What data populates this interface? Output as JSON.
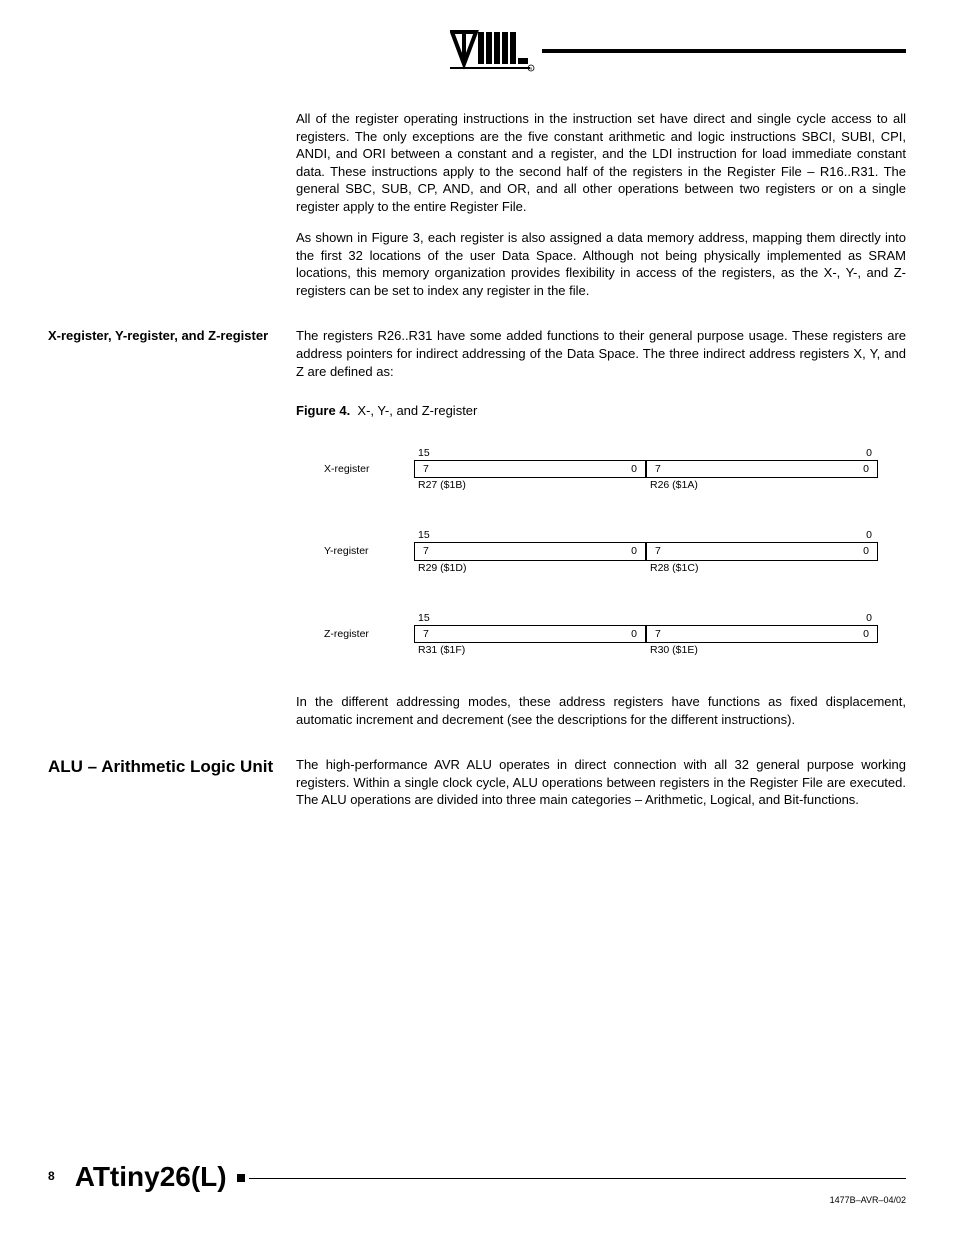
{
  "para1": "All of the register operating instructions in the instruction set have direct and single cycle access to all registers. The only exceptions are the five constant arithmetic and logic instructions SBCI, SUBI, CPI, ANDI, and ORI between a constant and a register, and the LDI instruction for load immediate constant data. These instructions apply to the second half of the registers in the Register File – R16..R31. The general SBC, SUB, CP, AND, and OR, and all other operations between two registers or on a single register apply to the entire Register File.",
  "para2": "As shown in Figure 3, each register is also assigned a data memory address, mapping them directly into the first 32 locations of the user Data Space. Although not being physically implemented as SRAM locations, this memory organization provides flexibility in access of the registers, as the X-, Y-, and Z-registers can be set to index any register in the file.",
  "side1": "X-register, Y-register, and Z-register",
  "para3": "The registers R26..R31 have some added functions to their general purpose usage. These registers are address pointers for indirect addressing of the Data Space. The three indirect address registers X, Y, and Z are defined as:",
  "fig_label": "Figure 4.",
  "fig_title": "X-, Y-, and Z-register",
  "registers": [
    {
      "name": "X-register",
      "hi": "R27 ($1B)",
      "lo": "R26 ($1A)"
    },
    {
      "name": "Y-register",
      "hi": "R29 ($1D)",
      "lo": "R28 ($1C)"
    },
    {
      "name": "Z-register",
      "hi": "R31 ($1F)",
      "lo": "R30 ($1E)"
    }
  ],
  "bits": {
    "top_left": "15",
    "top_right": "0",
    "cell_left": "7",
    "cell_right": "0"
  },
  "para4": "In the different addressing modes, these address registers have functions as fixed displacement, automatic increment and decrement (see the descriptions for the different instructions).",
  "side2": "ALU – Arithmetic Logic Unit",
  "para5": "The high-performance AVR ALU operates in direct connection with all 32 general purpose working registers. Within a single clock cycle, ALU operations between registers in the Register File are executed. The ALU operations are divided into three main categories – Arithmetic, Logical, and Bit-functions.",
  "footer": {
    "page": "8",
    "title": "ATtiny26(L)",
    "rev": "1477B–AVR–04/02"
  }
}
